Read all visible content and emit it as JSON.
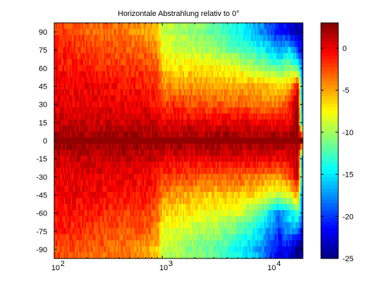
{
  "chart_data": {
    "type": "heatmap",
    "title": "Horizontale Abstrahlung relativ to 0°",
    "xlabel": "",
    "ylabel": "",
    "x_scale": "log",
    "xlim": [
      100,
      20000
    ],
    "x_ticks": [
      {
        "value": 100,
        "base": "10",
        "exp": "2"
      },
      {
        "value": 1000,
        "base": "10",
        "exp": "3"
      },
      {
        "value": 10000,
        "base": "10",
        "exp": "4"
      }
    ],
    "y_angles": [
      95,
      90,
      85,
      80,
      75,
      70,
      65,
      60,
      55,
      50,
      45,
      40,
      35,
      30,
      25,
      20,
      15,
      10,
      5,
      0,
      -5,
      -10,
      -15,
      -20,
      -25,
      -30,
      -35,
      -40,
      -45,
      -50,
      -55,
      -60,
      -65,
      -70,
      -75,
      -80,
      -85,
      -90,
      -95
    ],
    "y_tick_labels": [
      "90",
      "75",
      "60",
      "45",
      "30",
      "15",
      "0",
      "-15",
      "-30",
      "-45",
      "-60",
      "-75",
      "-90"
    ],
    "colorbar": {
      "range": [
        -25,
        3
      ],
      "ticks": [
        "0",
        "-5",
        "-10",
        "-15",
        "-20",
        "-25"
      ],
      "colormap": "jet"
    },
    "level_frequencies": [
      100,
      200,
      500,
      700,
      900,
      1000,
      1500,
      3000,
      5000,
      8000,
      12000,
      15000,
      18000,
      20000
    ],
    "angle_profiles": [
      {
        "angle": 90,
        "levels_db": [
          -2,
          -3,
          -4,
          -5,
          -6,
          -9,
          -10,
          -12,
          -14,
          -17,
          -21,
          -22,
          -24,
          -24
        ]
      },
      {
        "angle": 75,
        "levels_db": [
          -1,
          -2,
          -3,
          -3,
          -4,
          -8,
          -9,
          -10,
          -12,
          -14,
          -17,
          -15,
          -20,
          -22
        ]
      },
      {
        "angle": 60,
        "levels_db": [
          -1,
          -1,
          -2,
          -2,
          -3,
          -6,
          -7,
          -7,
          -8,
          -10,
          -12,
          -10,
          -12,
          -20
        ]
      },
      {
        "angle": 45,
        "levels_db": [
          0,
          0,
          -1,
          -1,
          -2,
          -4,
          -4.5,
          -5,
          -5,
          -5,
          -7,
          -6,
          0,
          -20
        ]
      },
      {
        "angle": 30,
        "levels_db": [
          0,
          0,
          0,
          0,
          -1,
          -2,
          -2,
          -3,
          -3,
          -4,
          -4,
          -2,
          2,
          -20
        ]
      },
      {
        "angle": 15,
        "levels_db": [
          1,
          1,
          1,
          1,
          1,
          0,
          0,
          0,
          0,
          0,
          0,
          0,
          3,
          -20
        ]
      },
      {
        "angle": 0,
        "levels_db": [
          2.5,
          2.5,
          2.5,
          2.5,
          2.5,
          2.5,
          2.5,
          2.5,
          2.5,
          2.5,
          2.5,
          2.5,
          2.5,
          2.5
        ]
      },
      {
        "angle": -15,
        "levels_db": [
          1,
          1,
          1,
          1,
          1,
          0,
          0,
          0,
          0,
          0,
          0,
          0,
          2,
          -20
        ]
      },
      {
        "angle": -30,
        "levels_db": [
          0,
          0,
          0,
          0,
          -1,
          -2,
          -2,
          -3,
          -3,
          -4,
          -5,
          -3,
          1,
          -20
        ]
      },
      {
        "angle": -45,
        "levels_db": [
          0,
          0,
          -1,
          -1,
          -2,
          -4,
          -5,
          -6,
          -6,
          -7,
          -9,
          -8,
          -5,
          -20
        ]
      },
      {
        "angle": -60,
        "levels_db": [
          -1,
          -1,
          -2,
          -2,
          -3,
          -6,
          -7,
          -8,
          -9,
          -12,
          -18,
          -15,
          -12,
          -20
        ]
      },
      {
        "angle": -75,
        "levels_db": [
          -1,
          -2,
          -3,
          -3,
          -4,
          -8,
          -9,
          -10,
          -12,
          -15,
          -20,
          -17,
          -18,
          -22
        ]
      },
      {
        "angle": -90,
        "levels_db": [
          -2,
          -3,
          -4,
          -5,
          -6,
          -9,
          -10,
          -12,
          -14,
          -17,
          -22,
          -22,
          -25,
          -25
        ]
      }
    ]
  }
}
